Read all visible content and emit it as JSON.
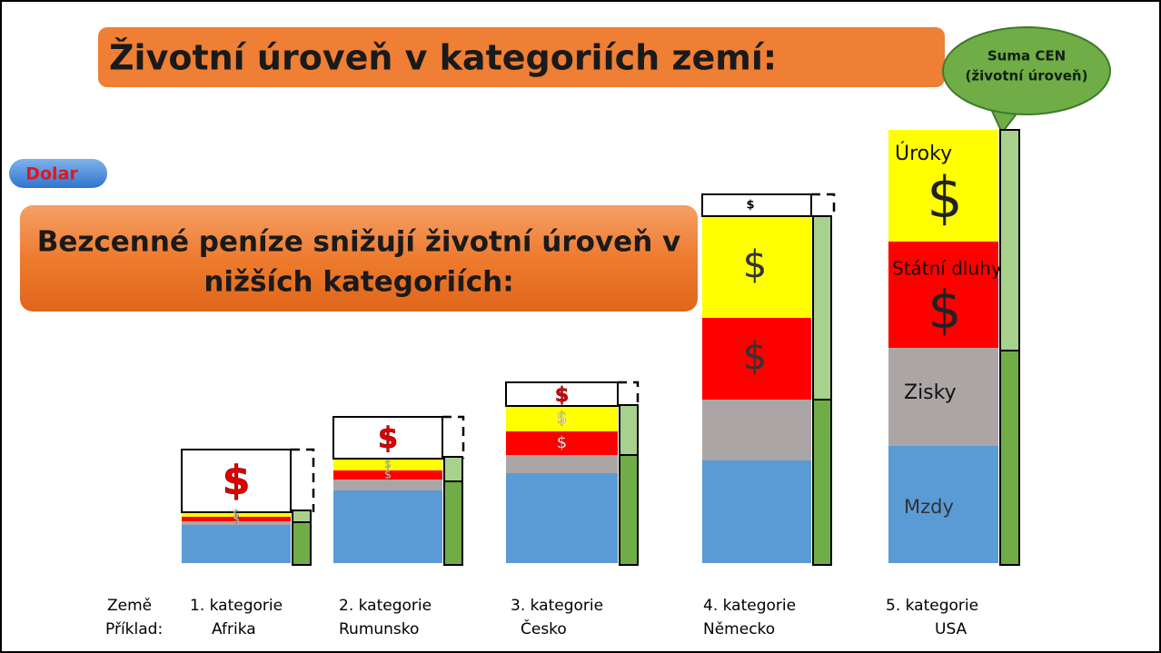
{
  "title": "Životní úroveň v kategoriích zemí:",
  "callout": {
    "line1": "Suma CEN",
    "line2": "(životní úroveň)"
  },
  "badge": "Dolar",
  "subtitle": {
    "lines": [
      "Bezcenné peníze snižují životní úroveň v",
      "nižších kategoriích:"
    ]
  },
  "dollar": "$",
  "segment_labels": {
    "interest": "Úroky",
    "debt": "Státní dluhy",
    "profits": "Zisky",
    "wages": "Mzdy"
  },
  "footer": {
    "country": "Země",
    "example": "Příklad:"
  },
  "categories": [
    {
      "name": "1. kategorie",
      "country": "Afrika"
    },
    {
      "name": "2. kategorie",
      "country": "Rumunsko"
    },
    {
      "name": "3. kategorie",
      "country": "Česko"
    },
    {
      "name": "4. kategorie",
      "country": "Německo"
    },
    {
      "name": "5. kategorie",
      "country": "USA"
    }
  ]
}
